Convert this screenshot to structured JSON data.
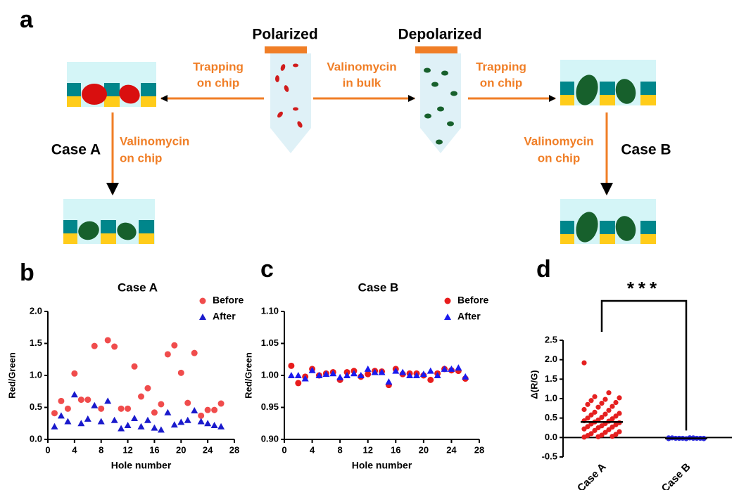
{
  "panels": {
    "a": "a",
    "b": "b",
    "c": "c",
    "d": "d"
  },
  "diagram": {
    "polarized": "Polarized",
    "depolarized": "Depolarized",
    "trap_left": [
      "Trapping",
      "on chip"
    ],
    "bulk": [
      "Valinomycin",
      "in bulk"
    ],
    "trap_right": [
      "Trapping",
      "on chip"
    ],
    "case_a": "Case A",
    "valino_left": [
      "Valinomycin",
      "on chip"
    ],
    "case_b": "Case B",
    "valino_right": [
      "Valinomycin",
      "on chip"
    ]
  },
  "chart_data": [
    {
      "type": "scatter",
      "title": "Case A",
      "x_label": "Hole number",
      "y_label": "Red/Green",
      "x": [
        1,
        2,
        3,
        4,
        5,
        6,
        7,
        8,
        9,
        10,
        11,
        12,
        13,
        14,
        15,
        16,
        17,
        18,
        19,
        20,
        21,
        22,
        23,
        24,
        25,
        26
      ],
      "series": [
        {
          "name": "Before",
          "color": "#f04c4c",
          "marker": "circle",
          "values": [
            0.41,
            0.6,
            0.48,
            1.03,
            0.62,
            0.62,
            1.46,
            0.48,
            1.55,
            1.45,
            0.48,
            0.48,
            1.14,
            0.67,
            0.8,
            0.42,
            0.55,
            1.33,
            1.47,
            1.04,
            0.57,
            1.35,
            0.37,
            0.46,
            0.46,
            0.56
          ]
        },
        {
          "name": "After",
          "color": "#1a1acc",
          "marker": "triangle",
          "values": [
            0.2,
            0.37,
            0.28,
            0.7,
            0.25,
            0.32,
            0.53,
            0.28,
            0.6,
            0.3,
            0.17,
            0.22,
            0.33,
            0.2,
            0.3,
            0.18,
            0.15,
            0.42,
            0.23,
            0.27,
            0.3,
            0.45,
            0.28,
            0.25,
            0.22,
            0.2
          ]
        }
      ],
      "xlim": [
        0,
        28
      ],
      "xticks": [
        0,
        4,
        8,
        12,
        16,
        20,
        24,
        28
      ],
      "ylim": [
        0,
        2
      ],
      "yticks": [
        {
          "value": 0,
          "label": "0.0"
        },
        0.5,
        {
          "value": 1,
          "label": "1.0"
        },
        1.5,
        {
          "value": 2,
          "label": "2.0"
        }
      ],
      "legend": "upper right"
    },
    {
      "type": "scatter",
      "title": "Case B",
      "x_label": "Hole number",
      "y_label": "Red/Green",
      "x": [
        1,
        2,
        3,
        4,
        5,
        6,
        7,
        8,
        9,
        10,
        11,
        12,
        13,
        14,
        15,
        16,
        17,
        18,
        19,
        20,
        21,
        22,
        23,
        24,
        25,
        26
      ],
      "series": [
        {
          "name": "Before",
          "color": "#e81c1c",
          "marker": "circle",
          "values": [
            1.015,
            0.988,
            0.998,
            1.01,
            1.0,
            1.003,
            1.005,
            0.993,
            1.005,
            1.007,
            0.998,
            1.002,
            1.007,
            1.006,
            0.985,
            1.01,
            1.002,
            1.003,
            1.003,
            1.0,
            0.993,
            1.003,
            1.01,
            1.008,
            1.007,
            0.995
          ]
        },
        {
          "name": "After",
          "color": "#1a1aee",
          "marker": "triangle",
          "values": [
            1.0,
            1.0,
            0.995,
            1.008,
            1.0,
            1.002,
            1.003,
            0.997,
            1.0,
            1.003,
            1.0,
            1.01,
            1.005,
            1.005,
            0.99,
            1.007,
            1.005,
            1.0,
            1.0,
            1.002,
            1.007,
            1.0,
            1.01,
            1.01,
            1.012,
            0.998
          ]
        }
      ],
      "xlim": [
        0,
        28
      ],
      "xticks": [
        0,
        4,
        8,
        12,
        16,
        20,
        24,
        28
      ],
      "ylim": [
        0.9,
        1.1
      ],
      "yticks": [
        {
          "value": 0.9,
          "label": "0.90"
        },
        0.95,
        {
          "value": 1,
          "label": "1.00"
        },
        1.05,
        {
          "value": 1.1,
          "label": "1.10"
        }
      ],
      "legend": "upper right"
    },
    {
      "type": "strip",
      "y_label": "Δ(R/G)",
      "categories": [
        "Case A",
        "Case B"
      ],
      "colors": [
        "#e52020",
        "#2a2ae0"
      ],
      "values": [
        [
          1.92,
          1.15,
          1.05,
          1.02,
          0.98,
          0.95,
          0.9,
          0.88,
          0.85,
          0.8,
          0.78,
          0.72,
          0.7,
          0.65,
          0.62,
          0.6,
          0.58,
          0.55,
          0.52,
          0.5,
          0.48,
          0.45,
          0.43,
          0.42,
          0.4,
          0.38,
          0.36,
          0.35,
          0.33,
          0.3,
          0.28,
          0.27,
          0.25,
          0.22,
          0.2,
          0.18,
          0.15,
          0.13,
          0.1,
          0.08,
          0.06,
          0.05,
          0.03,
          0.02,
          0.01
        ],
        [
          -0.01,
          -0.02,
          -0.02,
          -0.03,
          -0.01,
          -0.02,
          -0.02,
          -0.03,
          -0.01,
          -0.02,
          -0.02,
          -0.03,
          -0.01,
          -0.02,
          -0.02,
          -0.01
        ]
      ],
      "means": [
        0.4,
        -0.02
      ],
      "ylim": [
        -0.5,
        2.5
      ],
      "yticks": [
        -0.5,
        {
          "value": 0,
          "label": "0.0"
        },
        0.5,
        {
          "value": 1,
          "label": "1.0"
        },
        1.5,
        {
          "value": 2,
          "label": "2.0"
        },
        2.5
      ],
      "annotation": "***"
    }
  ]
}
